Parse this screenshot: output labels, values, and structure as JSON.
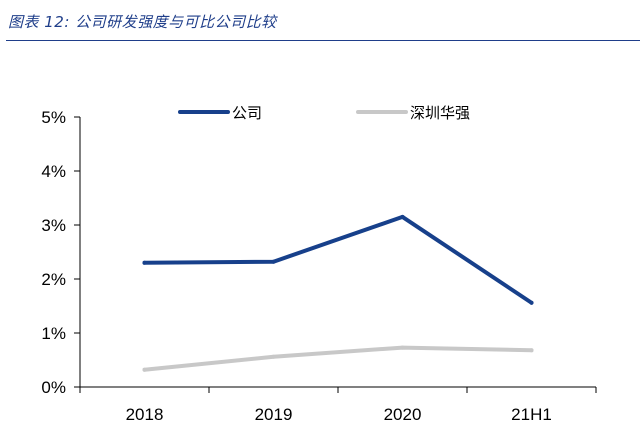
{
  "caption": "图表 12:  公司研发强度与可比公司比较",
  "chart_data": {
    "type": "line",
    "categories": [
      "2018",
      "2019",
      "2020",
      "21H1"
    ],
    "series": [
      {
        "name": "公司",
        "values": [
          2.3,
          2.32,
          3.15,
          1.56
        ],
        "color": "#17408b"
      },
      {
        "name": "深圳华强",
        "values": [
          0.32,
          0.56,
          0.73,
          0.68
        ],
        "color": "#c8c8c8"
      }
    ],
    "ylim": [
      0,
      5
    ],
    "yticks": [
      0,
      1,
      2,
      3,
      4,
      5
    ],
    "ytick_labels": [
      "0%",
      "1%",
      "2%",
      "3%",
      "4%",
      "5%"
    ],
    "legend_position": "top",
    "grid": false
  }
}
